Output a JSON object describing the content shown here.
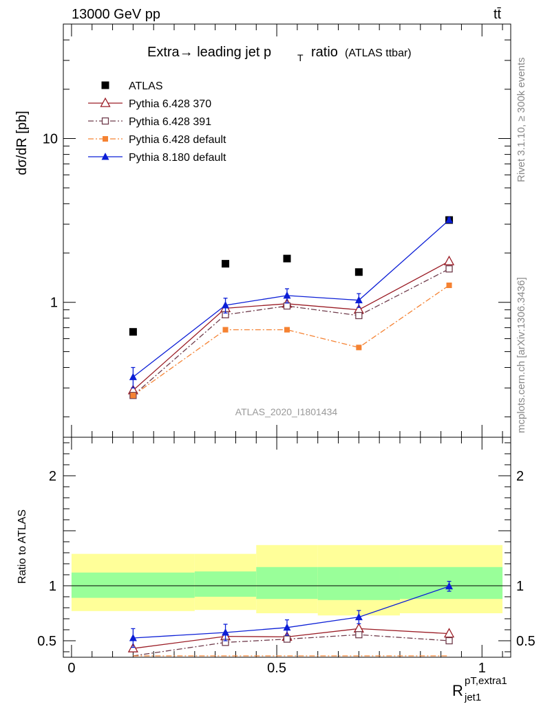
{
  "header": {
    "energy_label": "13000 GeV pp",
    "process_label": "tt̄",
    "title_main": "Extra→ leading jet p",
    "title_sub": "T",
    "title_tail": "ratio",
    "title_paren": "(ATLAS ttbar)",
    "rivet_label": "Rivet 3.1.10, ≥ 300k events",
    "mcplots_label": "mcplots.cern.ch [arXiv:1306.3436]",
    "analysis_label": "ATLAS_2020_I1801434"
  },
  "axes": {
    "y_main_label": "dσ/dR [pb]",
    "y_ratio_label": "Ratio to ATLAS",
    "x_label": "R",
    "x_label_sup": "pT,extra1",
    "x_label_sub": "jet1"
  },
  "colors": {
    "data": "#000000",
    "p6_370": "#9a1b24",
    "p6_391": "#6e3a4a",
    "p6_default": "#f58232",
    "p8_default": "#0b1ed6",
    "band_inner": "#99ff99",
    "band_outer": "#ffff99"
  },
  "chart_data": {
    "type": "scatter",
    "x_scale": "linear",
    "main_panel": {
      "y_scale": "log",
      "ylim": [
        0.15,
        50
      ],
      "y_ticks": [
        {
          "value": 1,
          "label": "1"
        },
        {
          "value": 10,
          "label": "10"
        }
      ],
      "x": [
        0.15,
        0.375,
        0.525,
        0.7,
        0.92
      ],
      "series": [
        {
          "name": "ATLAS",
          "key": "data",
          "marker": "square-filled",
          "values": [
            0.66,
            1.72,
            1.85,
            1.53,
            3.18
          ]
        },
        {
          "name": "Pythia 6.428 370",
          "key": "p6_370",
          "marker": "triangle-open",
          "values": [
            0.29,
            0.92,
            0.98,
            0.9,
            1.78
          ]
        },
        {
          "name": "Pythia 6.428 391",
          "key": "p6_391",
          "marker": "square-open",
          "values": [
            0.27,
            0.84,
            0.95,
            0.83,
            1.6
          ]
        },
        {
          "name": "Pythia 6.428 default",
          "key": "p6_default",
          "marker": "square-filled-small",
          "values": [
            0.27,
            0.68,
            0.68,
            0.53,
            1.27
          ]
        },
        {
          "name": "Pythia 8.180 default",
          "key": "p8_default",
          "marker": "triangle-filled",
          "values": [
            0.35,
            0.96,
            1.1,
            1.03,
            3.18
          ],
          "errors": [
            0.05,
            0.1,
            0.11,
            0.1,
            0.1
          ]
        }
      ]
    },
    "ratio_panel": {
      "y_scale": "linear",
      "ylim": [
        0.35,
        2.35
      ],
      "y_ticks": [
        {
          "value": 0.5,
          "label": "0.5"
        },
        {
          "value": 1,
          "label": "1"
        },
        {
          "value": 2,
          "label": "2"
        }
      ],
      "x_ticks": [
        {
          "value": 0,
          "label": "0"
        },
        {
          "value": 0.5,
          "label": "0.5"
        },
        {
          "value": 1,
          "label": "1"
        }
      ],
      "xlim": [
        -0.02,
        1.07
      ],
      "bands": [
        {
          "x0": 0.0,
          "x1": 0.3,
          "inner": [
            0.89,
            1.12
          ],
          "outer": [
            0.77,
            1.29
          ]
        },
        {
          "x0": 0.3,
          "x1": 0.45,
          "inner": [
            0.9,
            1.13
          ],
          "outer": [
            0.78,
            1.29
          ]
        },
        {
          "x0": 0.45,
          "x1": 0.6,
          "inner": [
            0.88,
            1.17
          ],
          "outer": [
            0.75,
            1.37
          ]
        },
        {
          "x0": 0.6,
          "x1": 0.8,
          "inner": [
            0.87,
            1.17
          ],
          "outer": [
            0.73,
            1.37
          ]
        },
        {
          "x0": 0.8,
          "x1": 1.05,
          "inner": [
            0.88,
            1.17
          ],
          "outer": [
            0.75,
            1.37
          ]
        }
      ],
      "x": [
        0.15,
        0.375,
        0.525,
        0.7,
        0.92
      ],
      "series": [
        {
          "key": "p6_370",
          "marker": "triangle-open",
          "values": [
            0.43,
            0.54,
            0.535,
            0.61,
            0.565
          ]
        },
        {
          "key": "p6_391",
          "marker": "square-open",
          "values": [
            0.35,
            0.485,
            0.515,
            0.555,
            0.5
          ]
        },
        {
          "key": "p6_default",
          "marker": "square-filled-small",
          "values": [
            0.35,
            0.3,
            0.3,
            0.3,
            0.3
          ]
        },
        {
          "key": "p8_default",
          "marker": "triangle-filled",
          "values": [
            0.525,
            0.575,
            0.62,
            0.715,
            0.995
          ],
          "errors": [
            0.085,
            0.075,
            0.07,
            0.06,
            0.045
          ]
        }
      ]
    }
  }
}
